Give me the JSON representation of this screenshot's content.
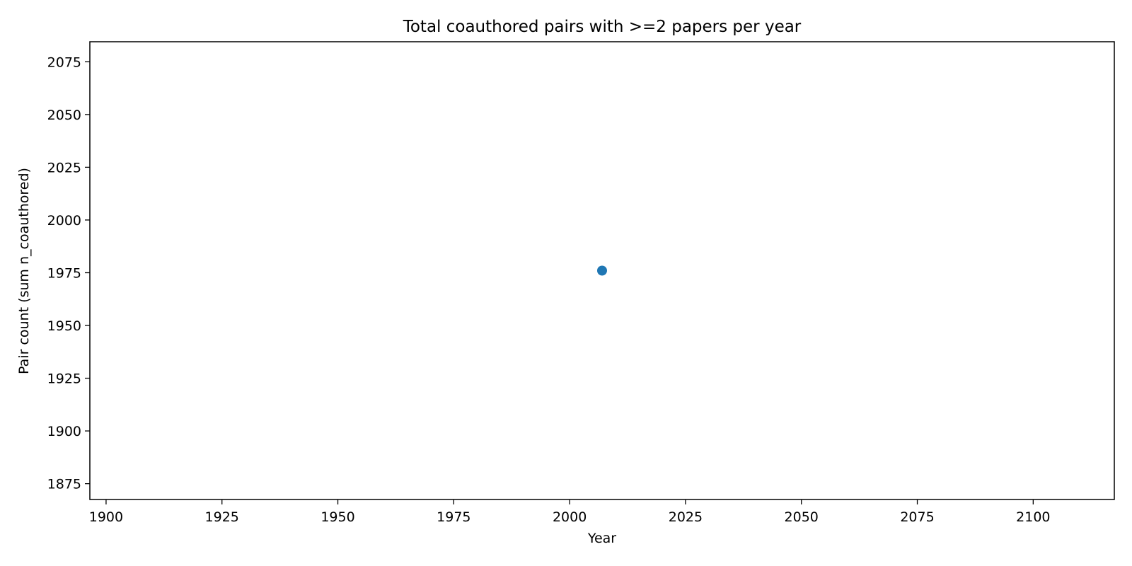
{
  "chart_data": {
    "type": "scatter",
    "title": "Total coauthored pairs with >=2 papers per year",
    "xlabel": "Year",
    "ylabel": "Pair count (sum n_coauthored)",
    "xlim": [
      1896.5,
      2117.5
    ],
    "ylim": [
      1867.5,
      2084.5
    ],
    "x_ticks": [
      1900,
      1925,
      1950,
      1975,
      2000,
      2025,
      2050,
      2075,
      2100
    ],
    "y_ticks": [
      1875,
      1900,
      1925,
      1950,
      1975,
      2000,
      2025,
      2050,
      2075
    ],
    "grid": false,
    "series": [
      {
        "color": "#1f77b4",
        "points": [
          {
            "x": 2007,
            "y": 1976
          }
        ]
      }
    ]
  }
}
